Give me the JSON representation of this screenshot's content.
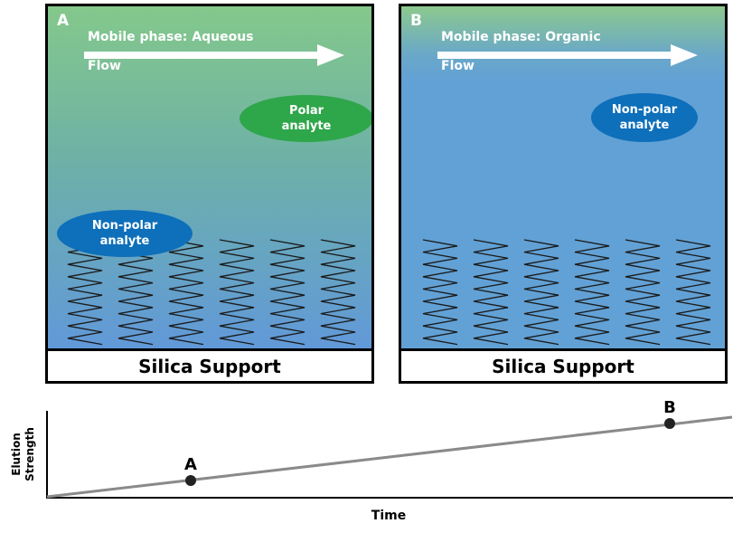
{
  "panels": {
    "a": {
      "letter": "A",
      "mobile_phase": "Mobile phase: Aqueous",
      "flow": "Flow",
      "analyte_top": "Polar\nanalyte",
      "analyte_bottom": "Non-polar\nanalyte",
      "support": "Silica Support"
    },
    "b": {
      "letter": "B",
      "mobile_phase": "Mobile phase: Organic",
      "flow": "Flow",
      "analyte_top": "Non-polar\nanalyte",
      "support": "Silica Support"
    }
  },
  "plot": {
    "ylabel_line1": "Elution",
    "ylabel_line2": "Strength",
    "xlabel": "Time",
    "point_a_label": "A",
    "point_b_label": "B"
  },
  "colors": {
    "polar_analyte": "#2ea64a",
    "nonpolar_analyte": "#0e6fba",
    "line": "#8a8a8a"
  }
}
